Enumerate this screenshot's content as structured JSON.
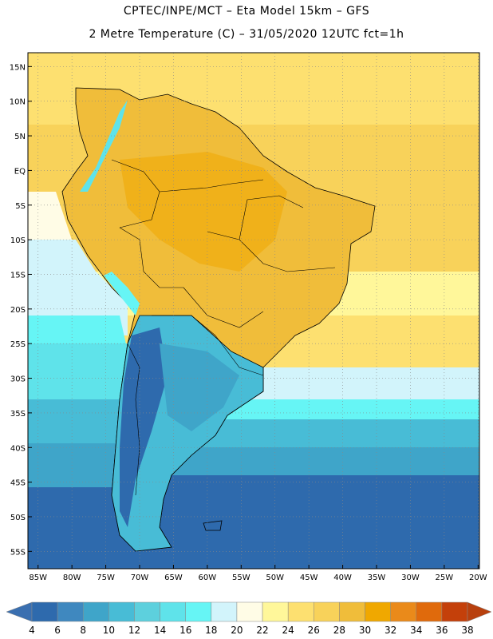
{
  "title": {
    "line1": "CPTEC/INPE/MCT  –  Eta Model 15km  –  GFS",
    "line2": "2 Metre Temperature (C)  –  31/05/2020  12UTC  fct=1h"
  },
  "axes": {
    "lat_labels": [
      "15N",
      "10N",
      "5N",
      "EQ",
      "5S",
      "10S",
      "15S",
      "20S",
      "25S",
      "30S",
      "35S",
      "40S",
      "45S",
      "50S",
      "55S"
    ],
    "lon_labels": [
      "85W",
      "80W",
      "75W",
      "70W",
      "65W",
      "60W",
      "55W",
      "50W",
      "45W",
      "40W",
      "35W",
      "30W",
      "25W",
      "20W"
    ]
  },
  "colorbar": {
    "ticks": [
      "4",
      "6",
      "8",
      "10",
      "12",
      "14",
      "16",
      "18",
      "20",
      "22",
      "24",
      "26",
      "28",
      "30",
      "32",
      "34",
      "36",
      "38"
    ],
    "colors": [
      "#3a6fb0",
      "#2e6aad",
      "#3f88bf",
      "#3fa5c9",
      "#48bcd6",
      "#5dd0dd",
      "#5fe3ea",
      "#66f5f5",
      "#d2f4fb",
      "#fffce6",
      "#fff79a",
      "#fde070",
      "#f8d25a",
      "#f0bd3a",
      "#f0a800",
      "#ea8a1a",
      "#e06a0c",
      "#c4400a",
      "#b8400e"
    ]
  },
  "map_layers": {
    "ocean_bands": [
      "#fde070",
      "#f8d25a",
      "#d2f4fb",
      "#66f5f5",
      "#5fe3ea",
      "#48bcd6",
      "#3fa5c9",
      "#2e6aad"
    ]
  }
}
